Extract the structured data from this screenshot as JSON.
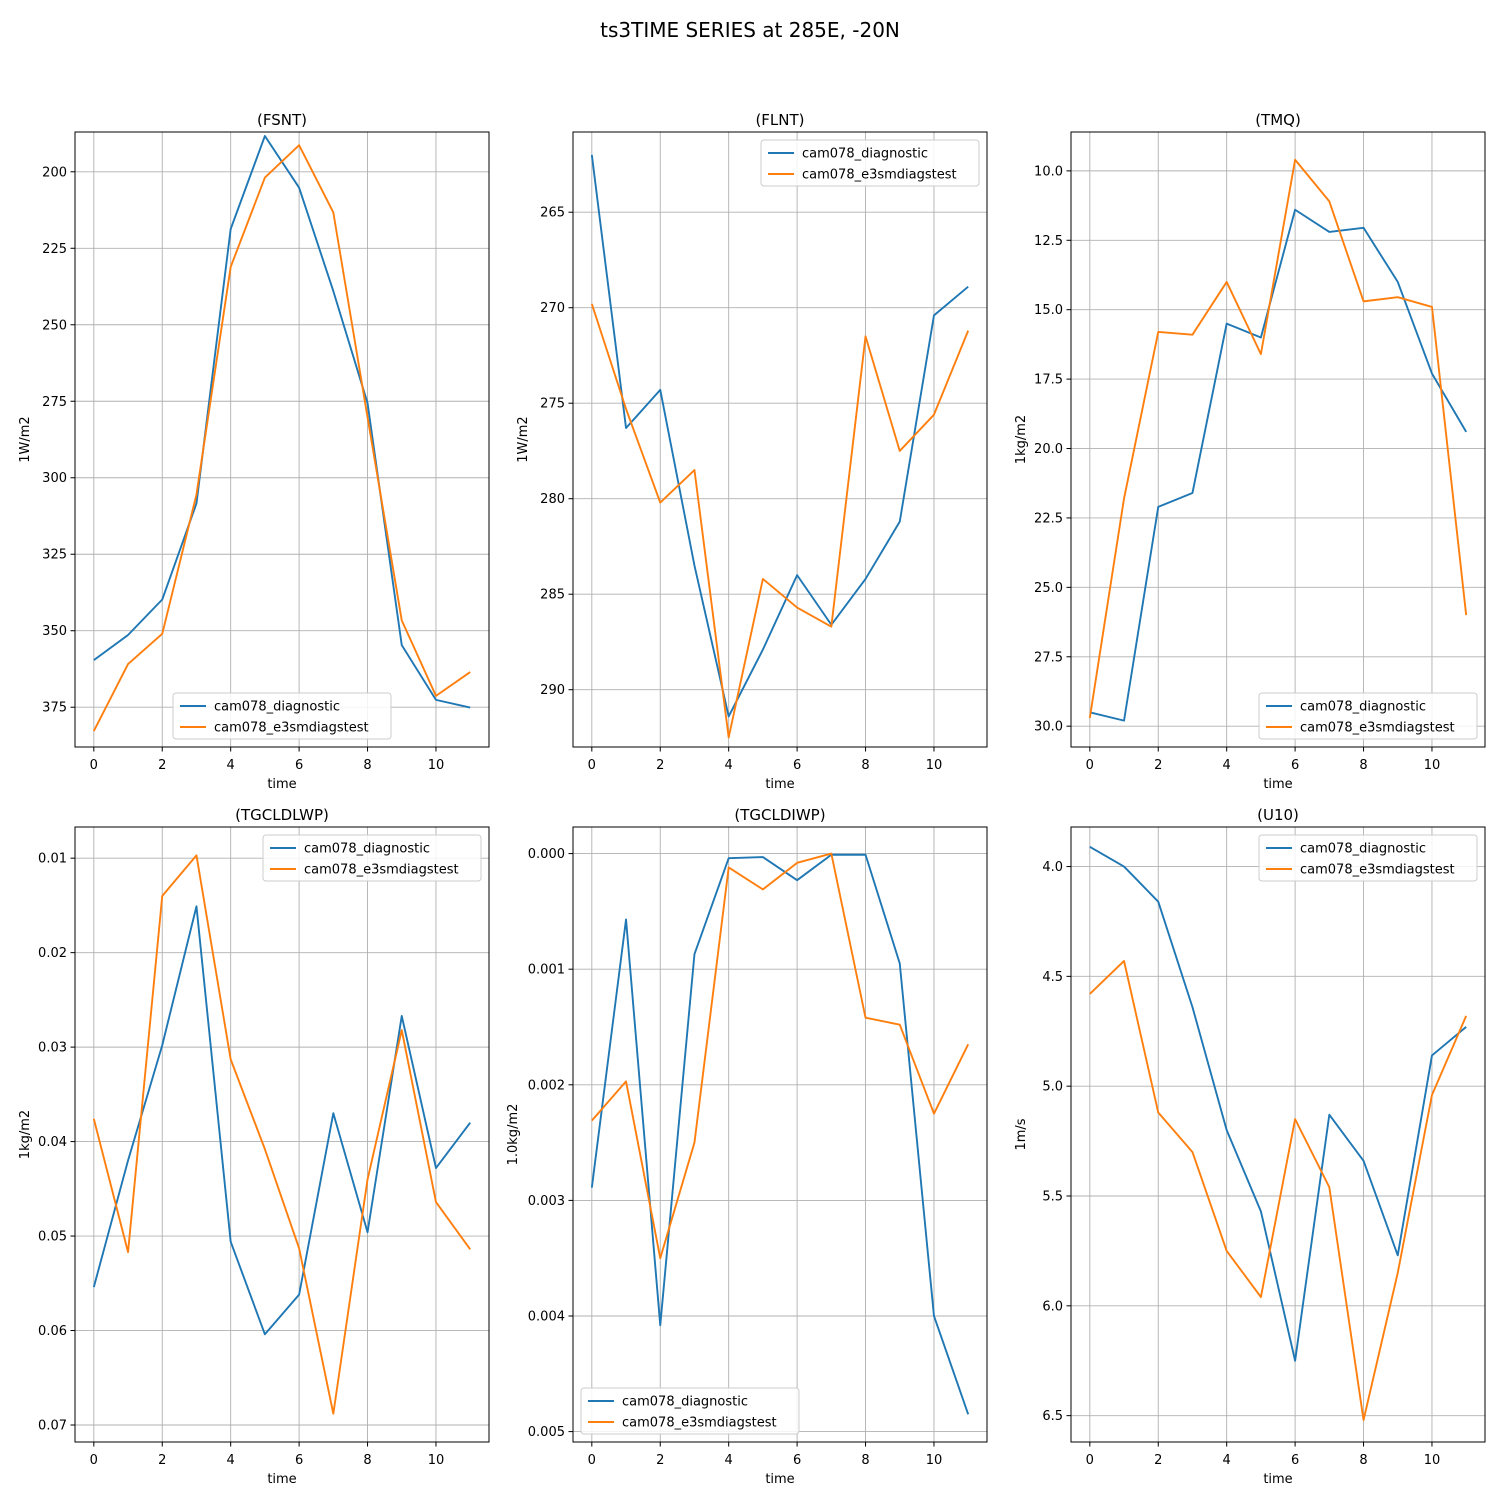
{
  "suptitle": "ts3TIME SERIES at 285E, -20N",
  "colors": {
    "diagnostic": "#1f77b4",
    "e3smdiagstest": "#ff7f0e",
    "grid": "#b0b0b0"
  },
  "chart_data": [
    {
      "type": "line",
      "title": "(FSNT)",
      "xlabel": "time",
      "ylabel": "1W/m2",
      "xlim": [
        -0.55,
        11.55
      ],
      "ylim": [
        388,
        187
      ],
      "y_inverted": true,
      "grid": true,
      "legend_loc": "lower-center",
      "xticks": [
        0,
        2,
        4,
        6,
        8,
        10
      ],
      "yticks": [
        200,
        225,
        250,
        275,
        300,
        325,
        350,
        375
      ],
      "ytick_labels": [
        "200",
        "225",
        "250",
        "275",
        "300",
        "325",
        "350",
        "375"
      ],
      "x": [
        0,
        1,
        2,
        3,
        4,
        5,
        6,
        7,
        8,
        9,
        10,
        11
      ],
      "series": [
        {
          "name": "cam078_diagnostic",
          "color": "#1f77b4",
          "values": [
            359.6,
            351.4,
            339.8,
            308.4,
            218.7,
            188.3,
            205.2,
            239.0,
            275.6,
            354.7,
            372.6,
            375.1
          ]
        },
        {
          "name": "cam078_e3smdiagstest",
          "color": "#ff7f0e",
          "values": [
            382.8,
            360.9,
            351.0,
            305.5,
            231.1,
            201.9,
            191.3,
            213.3,
            280.2,
            346.6,
            371.3,
            363.5
          ]
        }
      ]
    },
    {
      "type": "line",
      "title": "(FLNT)",
      "xlabel": "time",
      "ylabel": "1W/m2",
      "xlim": [
        -0.55,
        11.55
      ],
      "ylim": [
        293.0,
        260.8
      ],
      "y_inverted": true,
      "grid": true,
      "legend_loc": "upper-right",
      "xticks": [
        0,
        2,
        4,
        6,
        8,
        10
      ],
      "yticks": [
        265,
        270,
        275,
        280,
        285,
        290
      ],
      "ytick_labels": [
        "265",
        "270",
        "275",
        "280",
        "285",
        "290"
      ],
      "x": [
        0,
        1,
        2,
        3,
        4,
        5,
        6,
        7,
        8,
        9,
        10,
        11
      ],
      "series": [
        {
          "name": "cam078_diagnostic",
          "color": "#1f77b4",
          "values": [
            262.0,
            276.3,
            274.3,
            283.5,
            291.4,
            287.9,
            284.0,
            286.6,
            284.2,
            281.2,
            270.4,
            268.9
          ]
        },
        {
          "name": "cam078_e3smdiagstest",
          "color": "#ff7f0e",
          "values": [
            269.8,
            275.3,
            280.2,
            278.5,
            292.5,
            284.2,
            285.7,
            286.7,
            271.5,
            277.5,
            275.6,
            271.2
          ]
        }
      ]
    },
    {
      "type": "line",
      "title": "(TMQ)",
      "xlabel": "time",
      "ylabel": "1kg/m2",
      "xlim": [
        -0.55,
        11.55
      ],
      "ylim": [
        30.75,
        8.6
      ],
      "y_inverted": true,
      "grid": true,
      "legend_loc": "lower-right",
      "xticks": [
        0,
        2,
        4,
        6,
        8,
        10
      ],
      "yticks": [
        10.0,
        12.5,
        15.0,
        17.5,
        20.0,
        22.5,
        25.0,
        27.5,
        30.0
      ],
      "ytick_labels": [
        "10.0",
        "12.5",
        "15.0",
        "17.5",
        "20.0",
        "22.5",
        "25.0",
        "27.5",
        "30.0"
      ],
      "x": [
        0,
        1,
        2,
        3,
        4,
        5,
        6,
        7,
        8,
        9,
        10,
        11
      ],
      "series": [
        {
          "name": "cam078_diagnostic",
          "color": "#1f77b4",
          "values": [
            29.5,
            29.8,
            22.1,
            21.6,
            15.5,
            16.0,
            11.4,
            12.2,
            12.05,
            14.0,
            17.3,
            19.4
          ]
        },
        {
          "name": "cam078_e3smdiagstest",
          "color": "#ff7f0e",
          "values": [
            29.7,
            21.8,
            15.8,
            15.9,
            14.0,
            16.6,
            9.6,
            11.1,
            14.7,
            14.55,
            14.9,
            26.0
          ]
        }
      ]
    },
    {
      "type": "line",
      "title": "(TGCLDLWP)",
      "xlabel": "time",
      "ylabel": "1kg/m2",
      "xlim": [
        -0.55,
        11.55
      ],
      "ylim": [
        0.0718,
        0.0067
      ],
      "y_inverted": true,
      "grid": true,
      "legend_loc": "upper-right",
      "xticks": [
        0,
        2,
        4,
        6,
        8,
        10
      ],
      "yticks": [
        0.01,
        0.02,
        0.03,
        0.04,
        0.05,
        0.06,
        0.07
      ],
      "ytick_labels": [
        "0.01",
        "0.02",
        "0.03",
        "0.04",
        "0.05",
        "0.06",
        "0.07"
      ],
      "x": [
        0,
        1,
        2,
        3,
        4,
        5,
        6,
        7,
        8,
        9,
        10,
        11
      ],
      "series": [
        {
          "name": "cam078_diagnostic",
          "color": "#1f77b4",
          "values": [
            0.0554,
            0.042,
            0.0298,
            0.0151,
            0.0506,
            0.0604,
            0.0562,
            0.037,
            0.0496,
            0.0267,
            0.0428,
            0.038
          ]
        },
        {
          "name": "cam078_e3smdiagstest",
          "color": "#ff7f0e",
          "values": [
            0.0376,
            0.0517,
            0.014,
            0.0097,
            0.0313,
            0.0408,
            0.0513,
            0.0688,
            0.044,
            0.0282,
            0.0464,
            0.0514
          ]
        }
      ]
    },
    {
      "type": "line",
      "title": "(TGCLDIWP)",
      "xlabel": "time",
      "ylabel": "1.0kg/m2",
      "xlim": [
        -0.55,
        11.55
      ],
      "ylim": [
        0.00509,
        -0.00023
      ],
      "y_inverted": true,
      "grid": true,
      "legend_loc": "lower-left",
      "xticks": [
        0,
        2,
        4,
        6,
        8,
        10
      ],
      "yticks": [
        0.0,
        0.001,
        0.002,
        0.003,
        0.004,
        0.005
      ],
      "ytick_labels": [
        "0.000",
        "0.001",
        "0.002",
        "0.003",
        "0.004",
        "0.005"
      ],
      "x": [
        0,
        1,
        2,
        3,
        4,
        5,
        6,
        7,
        8,
        9,
        10,
        11
      ],
      "series": [
        {
          "name": "cam078_diagnostic",
          "color": "#1f77b4",
          "values": [
            0.00289,
            0.00057,
            0.00408,
            0.00087,
            4e-05,
            3e-05,
            0.00023,
            1e-05,
            1e-05,
            0.00095,
            0.004,
            0.00485
          ]
        },
        {
          "name": "cam078_e3smdiagstest",
          "color": "#ff7f0e",
          "values": [
            0.00231,
            0.00197,
            0.0035,
            0.0025,
            0.00012,
            0.00031,
            8e-05,
            0.0,
            0.00142,
            0.00148,
            0.00225,
            0.00165
          ]
        }
      ]
    },
    {
      "type": "line",
      "title": "(U10)",
      "xlabel": "time",
      "ylabel": "1m/s",
      "xlim": [
        -0.55,
        11.55
      ],
      "ylim": [
        6.62,
        3.82
      ],
      "y_inverted": true,
      "grid": true,
      "legend_loc": "upper-right",
      "xticks": [
        0,
        2,
        4,
        6,
        8,
        10
      ],
      "yticks": [
        4.0,
        4.5,
        5.0,
        5.5,
        6.0,
        6.5
      ],
      "ytick_labels": [
        "4.0",
        "4.5",
        "5.0",
        "5.5",
        "6.0",
        "6.5"
      ],
      "x": [
        0,
        1,
        2,
        3,
        4,
        5,
        6,
        7,
        8,
        9,
        10,
        11
      ],
      "series": [
        {
          "name": "cam078_diagnostic",
          "color": "#1f77b4",
          "values": [
            3.91,
            4.0,
            4.16,
            4.64,
            5.2,
            5.57,
            6.25,
            5.13,
            5.34,
            5.77,
            4.86,
            4.73
          ]
        },
        {
          "name": "cam078_e3smdiagstest",
          "color": "#ff7f0e",
          "values": [
            4.58,
            4.43,
            5.12,
            5.3,
            5.75,
            5.96,
            5.15,
            5.46,
            6.52,
            5.85,
            5.04,
            4.68
          ]
        }
      ]
    }
  ]
}
